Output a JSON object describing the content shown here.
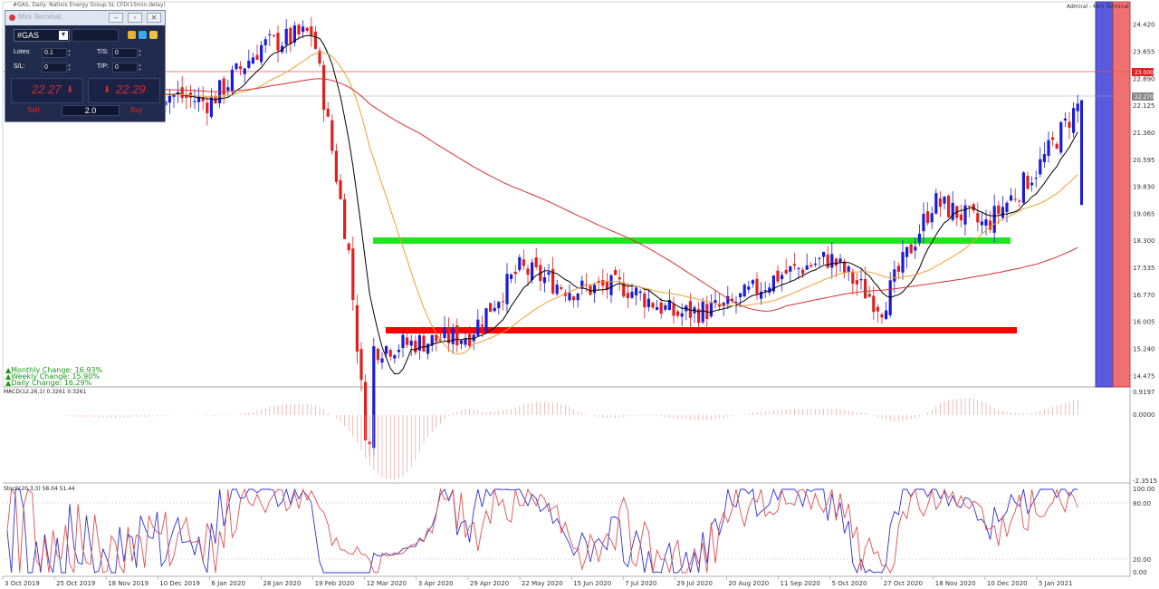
{
  "header": {
    "title": "#GAS, Daily: Natixis Energy Group SL CFD(15min delay)",
    "platform": "Admiral - Mini Terminal"
  },
  "mini_terminal": {
    "window_title": "Mini Terminal",
    "symbol": "#GAS",
    "lotes_label": "Lotes:",
    "lotes_value": "0.1",
    "sl_label": "S/L:",
    "sl_value": "0",
    "ts_label": "T/S:",
    "ts_value": "0",
    "tp_label": "T/P:",
    "tp_value": "0",
    "sell_price": "22.27",
    "buy_price": "22.29",
    "sell_label": "Sell",
    "buy_label": "Buy",
    "volume": "2.0"
  },
  "changes": {
    "monthly": "▲Monthly Change: 16.93%",
    "weekly": "▲Weekly Change: 15.90%",
    "daily": "▲Daily Change: 16.29%"
  },
  "indicators": {
    "macd_label": "MACD(12,26,1) 0.3261 0.3261",
    "stoch_label": "Stoch(20,3,3) 58.04 51.44"
  },
  "price_axis": {
    "ticks": [
      "24.420",
      "23.655",
      "22.890",
      "22.125",
      "21.360",
      "20.595",
      "19.830",
      "19.065",
      "18.300",
      "17.535",
      "16.770",
      "16.005",
      "15.240",
      "14.475"
    ],
    "level_line_label": "23.000",
    "current_price_label": "22.270"
  },
  "macd_axis": {
    "ticks": [
      "0.9197",
      "0.0000",
      "-2.3515"
    ]
  },
  "stoch_axis": {
    "ticks": [
      "100.00",
      "80.00",
      "20.00",
      "0.00"
    ]
  },
  "time_axis": {
    "labels": [
      "3 Oct 2019",
      "25 Oct 2019",
      "18 Nov 2019",
      "10 Dec 2019",
      "6 Jan 2020",
      "28 Jan 2020",
      "19 Feb 2020",
      "12 Mar 2020",
      "3 Apr 2020",
      "29 Apr 2020",
      "22 May 2020",
      "15 Jun 2020",
      "7 Jul 2020",
      "29 Jul 2020",
      "20 Aug 2020",
      "11 Sep 2020",
      "5 Oct 2020",
      "27 Oct 2020",
      "18 Nov 2020",
      "10 Dec 2020",
      "5 Jan 2021"
    ]
  },
  "colors": {
    "bull_candle": "#1c1cd6",
    "bear_candle": "#e02020",
    "support_zone": "#ff0000",
    "resistance_zone": "#1ee61e",
    "ma_fast": "#000000",
    "ma_mid": "#f0a030",
    "ma_slow": "#d83030",
    "side_blue": "#5a5adf",
    "side_red": "#f07070"
  },
  "chart_data": {
    "type": "candlestick",
    "price_range": [
      14.2,
      24.9
    ],
    "close_path": [
      [
        "3 Oct 2019",
        23.1
      ],
      [
        "25 Oct 2019",
        22.7
      ],
      [
        "18 Nov 2019",
        22.45
      ],
      [
        "10 Dec 2019",
        22.5
      ],
      [
        "6 Jan 2020",
        22.2
      ],
      [
        "28 Jan 2020",
        23.8
      ],
      [
        "19 Feb 2020",
        24.2
      ],
      [
        "12 Mar 2020",
        15.2
      ],
      [
        "3 Apr 2020",
        15.4
      ],
      [
        "29 Apr 2020",
        15.6
      ],
      [
        "22 May 2020",
        17.5
      ],
      [
        "15 Jun 2020",
        16.9
      ],
      [
        "7 Jul 2020",
        17.0
      ],
      [
        "29 Jul 2020",
        16.2
      ],
      [
        "20 Aug 2020",
        16.4
      ],
      [
        "11 Sep 2020",
        17.3
      ],
      [
        "5 Oct 2020",
        17.8
      ],
      [
        "27 Oct 2020",
        16.4
      ],
      [
        "18 Nov 2020",
        19.4
      ],
      [
        "10 Dec 2020",
        18.7
      ],
      [
        "5 Jan 2021",
        20.3
      ]
    ],
    "last_close": 22.27,
    "support_zone": 15.37,
    "resistance_zone": 18.02,
    "horizontal_level": 23.0
  }
}
